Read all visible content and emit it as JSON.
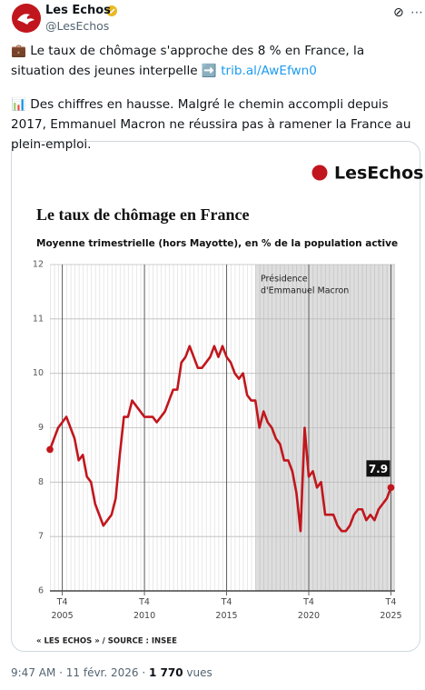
{
  "tweet": {
    "name": "Les Echos",
    "handle": "@LesEchos",
    "text1": "💼 Le taux de chômage s'approche des 8 % en France, la situation des jeunes interpelle ➡️ ",
    "link": "trib.al/AwEfwn0",
    "text2": "📊 Des chiffres en hausse. Malgré le chemin accompli depuis 2017, Emmanuel Macron ne réussira pas à ramener la France au plein-emploi.",
    "time": "9:47 AM · 11 févr. 2026 · ",
    "views": "1 770",
    "views_unit": " vues"
  },
  "chart_data": {
    "type": "line",
    "logo": "LesEchos",
    "title": "Le taux de chômage en France",
    "subtitle": "Moyenne trimestrielle (hors Mayotte), en % de la population active",
    "annotation": [
      "Présidence",
      "d'Emmanuel Macron"
    ],
    "source": "« LES ECHOS » / SOURCE : INSEE",
    "color": "#c1161d",
    "shaded_from": 2017.5,
    "x": [
      2005,
      2005.25,
      2005.5,
      2005.75,
      2006,
      2006.25,
      2006.5,
      2006.75,
      2007,
      2007.25,
      2007.5,
      2007.75,
      2008,
      2008.25,
      2008.5,
      2008.75,
      2009,
      2009.25,
      2009.5,
      2009.75,
      2010,
      2010.25,
      2010.5,
      2010.75,
      2011,
      2011.25,
      2011.5,
      2011.75,
      2012,
      2012.25,
      2012.5,
      2012.75,
      2013,
      2013.25,
      2013.5,
      2013.75,
      2014,
      2014.25,
      2014.5,
      2014.75,
      2015,
      2015.25,
      2015.5,
      2015.75,
      2016,
      2016.25,
      2016.5,
      2016.75,
      2017,
      2017.25,
      2017.5,
      2017.75,
      2018,
      2018.25,
      2018.5,
      2018.75,
      2019,
      2019.25,
      2019.5,
      2019.75,
      2020,
      2020.25,
      2020.5,
      2020.75,
      2021,
      2021.25,
      2021.5,
      2021.75,
      2022,
      2022.25,
      2022.5,
      2022.75,
      2023,
      2023.25,
      2023.5,
      2023.75,
      2024,
      2024.25,
      2024.5,
      2024.75,
      2025,
      2025.25,
      2025.5,
      2025.75
    ],
    "values": [
      8.6,
      8.8,
      9.0,
      9.1,
      9.2,
      9.0,
      8.8,
      8.4,
      8.5,
      8.1,
      8.0,
      7.6,
      7.4,
      7.2,
      7.3,
      7.4,
      7.7,
      8.5,
      9.2,
      9.2,
      9.5,
      9.4,
      9.3,
      9.2,
      9.2,
      9.2,
      9.1,
      9.2,
      9.3,
      9.5,
      9.7,
      9.7,
      10.2,
      10.3,
      10.5,
      10.3,
      10.1,
      10.1,
      10.2,
      10.3,
      10.5,
      10.3,
      10.5,
      10.3,
      10.2,
      10.0,
      9.9,
      10.0,
      9.6,
      9.5,
      9.5,
      9.0,
      9.3,
      9.1,
      9.0,
      8.8,
      8.7,
      8.4,
      8.4,
      8.2,
      7.8,
      7.1,
      9.0,
      8.1,
      8.2,
      7.9,
      8.0,
      7.4,
      7.4,
      7.4,
      7.2,
      7.1,
      7.1,
      7.2,
      7.4,
      7.5,
      7.5,
      7.3,
      7.4,
      7.3,
      7.5,
      7.6,
      7.7,
      7.9
    ],
    "xlim": [
      2005,
      2026
    ],
    "xticks": [
      {
        "value": 2005.75,
        "label": "T4 2005"
      },
      {
        "value": 2010.75,
        "label": "T4 2010"
      },
      {
        "value": 2015.75,
        "label": "T4 2015"
      },
      {
        "value": 2020.75,
        "label": "T4 2020"
      },
      {
        "value": 2025.75,
        "label": "T4 2025"
      }
    ],
    "ylim": [
      6,
      12
    ],
    "yticks": [
      6,
      7,
      8,
      9,
      10,
      11,
      12
    ],
    "grid": true
  }
}
